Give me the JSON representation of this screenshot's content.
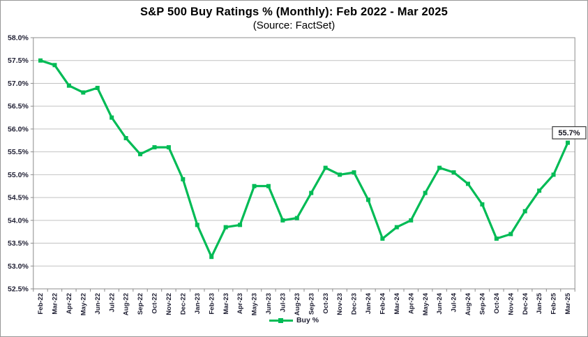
{
  "header": {
    "title": "S&P 500 Buy Ratings % (Monthly): Feb 2022 - Mar 2025",
    "subtitle": "(Source: FactSet)"
  },
  "chart_data": {
    "type": "line",
    "title": "S&P 500 Buy Ratings % (Monthly): Feb 2022 - Mar 2025",
    "subtitle": "(Source: FactSet)",
    "categories": [
      "Feb-22",
      "Mar-22",
      "Apr-22",
      "May-22",
      "Jun-22",
      "Jul-22",
      "Aug-22",
      "Sep-22",
      "Oct-22",
      "Nov-22",
      "Dec-22",
      "Jan-23",
      "Feb-23",
      "Mar-23",
      "Apr-23",
      "May-23",
      "Jun-23",
      "Jul-23",
      "Aug-23",
      "Sep-23",
      "Oct-23",
      "Nov-23",
      "Dec-23",
      "Jan-24",
      "Feb-24",
      "Mar-24",
      "Apr-24",
      "May-24",
      "Jun-24",
      "Jul-24",
      "Aug-24",
      "Sep-24",
      "Oct-24",
      "Nov-24",
      "Dec-24",
      "Jan-25",
      "Feb-25",
      "Mar-25"
    ],
    "series": [
      {
        "name": "Buy %",
        "color": "#00bb55",
        "values": [
          57.5,
          57.4,
          56.95,
          56.8,
          56.9,
          56.25,
          55.8,
          55.45,
          55.6,
          55.6,
          54.9,
          53.9,
          53.2,
          53.85,
          53.9,
          54.75,
          54.75,
          54.0,
          54.05,
          54.6,
          55.15,
          55.0,
          55.05,
          54.45,
          53.6,
          53.85,
          54.0,
          54.6,
          55.15,
          55.05,
          54.8,
          54.35,
          53.6,
          53.7,
          54.2,
          54.65,
          55.0,
          55.7
        ]
      }
    ],
    "xlabel": "",
    "ylabel": "",
    "ylim": [
      52.5,
      58.0
    ],
    "ytick_step": 0.5,
    "ytick_labels": [
      "58.0%",
      "57.5%",
      "57.0%",
      "56.5%",
      "56.0%",
      "55.5%",
      "55.0%",
      "54.5%",
      "54.0%",
      "53.5%",
      "53.0%",
      "52.5%"
    ],
    "grid": true,
    "legend_position": "bottom",
    "annotations": [
      {
        "text": "55.7%",
        "target": "Mar-25",
        "value": 55.7
      }
    ]
  },
  "colors": {
    "line": "#00bb55",
    "grid": "#c2c2c2",
    "axis": "#8c8c8c",
    "tick": "#8c8c8c",
    "label": "#1f1f33",
    "title": "#000000",
    "callout_bg": "#ffffff",
    "callout_border": "#3a3a3a",
    "frame_border": "#979797"
  }
}
